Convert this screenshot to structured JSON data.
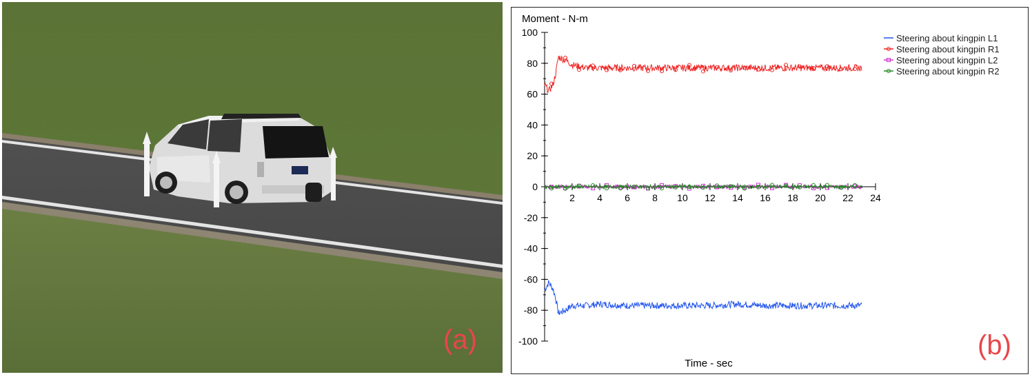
{
  "panel_a": {
    "label": "(a)"
  },
  "panel_b": {
    "label": "(b)"
  },
  "chart_data": {
    "type": "line",
    "ylabel": "Moment - N-m",
    "xlabel": "Time - sec",
    "xlim": [
      0,
      24
    ],
    "ylim": [
      -100,
      100
    ],
    "x_ticks": [
      2,
      4,
      6,
      8,
      10,
      12,
      14,
      16,
      18,
      20,
      22,
      24
    ],
    "y_ticks": [
      100,
      80,
      60,
      40,
      20,
      0,
      -20,
      -40,
      -60,
      -80,
      -100
    ],
    "legend_position": "top-right",
    "series": [
      {
        "name": "Steering about kingpin L1",
        "color": "#2255ee",
        "marker": "none",
        "x": [
          0,
          0.3,
          0.6,
          0.8,
          1.0,
          1.5,
          2,
          3,
          4,
          6,
          8,
          10,
          12,
          14,
          16,
          18,
          20,
          22,
          23
        ],
        "y": [
          -67,
          -62,
          -66,
          -72,
          -82,
          -80,
          -77,
          -77,
          -76,
          -77,
          -77,
          -77,
          -77,
          -76,
          -77,
          -77,
          -77,
          -77,
          -77
        ]
      },
      {
        "name": "Steering about kingpin R1",
        "color": "#ee2222",
        "marker": "circle",
        "x": [
          0,
          0.3,
          0.6,
          0.8,
          1.0,
          1.5,
          2,
          3,
          4,
          6,
          8,
          10,
          12,
          14,
          16,
          18,
          20,
          22,
          23
        ],
        "y": [
          66,
          62,
          66,
          73,
          84,
          82,
          79,
          77,
          77,
          77,
          77,
          77,
          77,
          77,
          77,
          77,
          77,
          77,
          77
        ]
      },
      {
        "name": "Steering about kingpin L2",
        "color": "#cc33cc",
        "marker": "square",
        "x": [
          0,
          2,
          4,
          6,
          8,
          10,
          12,
          14,
          16,
          18,
          20,
          22,
          23
        ],
        "y": [
          0,
          0,
          0,
          0,
          0,
          0,
          0,
          0,
          0,
          0,
          0,
          0,
          0
        ]
      },
      {
        "name": "Steering about kingpin R2",
        "color": "#228822",
        "marker": "circle",
        "x": [
          0,
          2,
          4,
          6,
          8,
          10,
          12,
          14,
          16,
          18,
          20,
          22,
          23
        ],
        "y": [
          0,
          0,
          0,
          0,
          0,
          0,
          0,
          0,
          0,
          0,
          0,
          0,
          0
        ]
      }
    ]
  }
}
